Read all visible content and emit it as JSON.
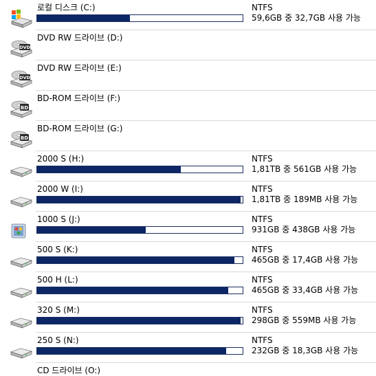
{
  "drives": [
    {
      "name": "로컬 디스크 (C:)",
      "icon": "windows-drive-icon",
      "filesystem": "NTFS",
      "space": "59,6GB 중 32,7GB 사용 가능",
      "used_fraction": 0.45
    },
    {
      "name": "DVD RW 드라이브 (D:)",
      "icon": "dvd-drive-icon"
    },
    {
      "name": "DVD RW 드라이브 (E:)",
      "icon": "dvd-drive-icon"
    },
    {
      "name": "BD-ROM 드라이브 (F:)",
      "icon": "bd-drive-icon"
    },
    {
      "name": "BD-ROM 드라이브 (G:)",
      "icon": "bd-drive-icon"
    },
    {
      "name": "2000 S (H:)",
      "icon": "hard-drive-icon",
      "filesystem": "NTFS",
      "space": "1,81TB 중 561GB 사용 가능",
      "used_fraction": 0.7
    },
    {
      "name": "2000 W (I:)",
      "icon": "hard-drive-icon",
      "filesystem": "NTFS",
      "space": "1,81TB 중 189MB 사용 가능",
      "used_fraction": 0.99
    },
    {
      "name": "1000 S (J:)",
      "icon": "custom-drive-icon",
      "filesystem": "NTFS",
      "space": "931GB 중 438GB 사용 가능",
      "used_fraction": 0.53
    },
    {
      "name": "500 S (K:)",
      "icon": "hard-drive-icon",
      "filesystem": "NTFS",
      "space": "465GB 중 17,4GB 사용 가능",
      "used_fraction": 0.96
    },
    {
      "name": "500 H (L:)",
      "icon": "hard-drive-icon",
      "filesystem": "NTFS",
      "space": "465GB 중 33,4GB 사용 가능",
      "used_fraction": 0.93
    },
    {
      "name": "320 S (M:)",
      "icon": "hard-drive-icon",
      "filesystem": "NTFS",
      "space": "298GB 중 559MB 사용 가능",
      "used_fraction": 0.99
    },
    {
      "name": "250 S (N:)",
      "icon": "hard-drive-icon",
      "filesystem": "NTFS",
      "space": "232GB 중 18,3GB 사용 가능",
      "used_fraction": 0.92
    }
  ],
  "partial_last_row": {
    "name": "CD 드라이브 (O:)"
  }
}
